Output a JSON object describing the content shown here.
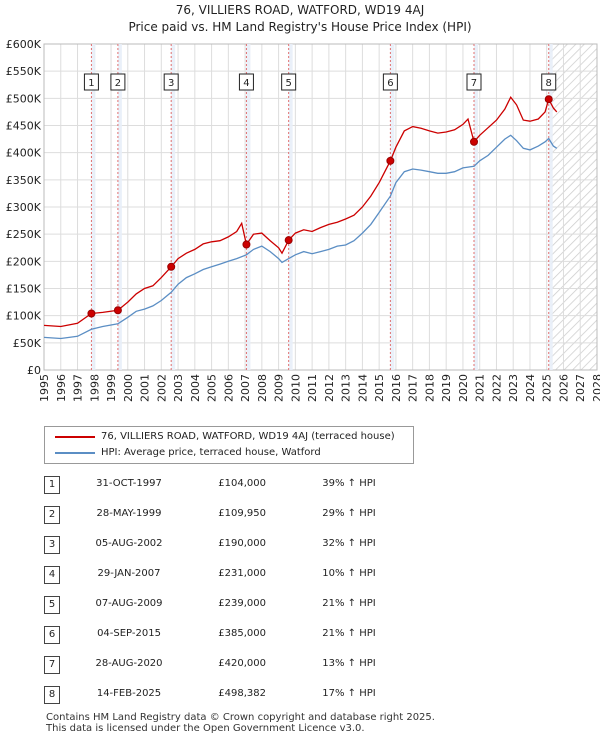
{
  "chart_data": {
    "type": "line",
    "title": "76, VILLIERS ROAD, WATFORD, WD19 4AJ",
    "subtitle": "Price paid vs. HM Land Registry's House Price Index (HPI)",
    "xlim": [
      1995,
      2028
    ],
    "ylim": [
      0,
      600000
    ],
    "x_ticks": [
      "1995",
      "1996",
      "1997",
      "1998",
      "1999",
      "2000",
      "2001",
      "2002",
      "2003",
      "2004",
      "2005",
      "2006",
      "2007",
      "2008",
      "2009",
      "2010",
      "2011",
      "2012",
      "2013",
      "2014",
      "2015",
      "2016",
      "2017",
      "2018",
      "2019",
      "2020",
      "2021",
      "2022",
      "2023",
      "2024",
      "2025",
      "2026",
      "2027",
      "2028"
    ],
    "y_ticks": [
      {
        "value": 0,
        "label": "£0"
      },
      {
        "value": 50000,
        "label": "£50K"
      },
      {
        "value": 100000,
        "label": "£100K"
      },
      {
        "value": 150000,
        "label": "£150K"
      },
      {
        "value": 200000,
        "label": "£200K"
      },
      {
        "value": 250000,
        "label": "£250K"
      },
      {
        "value": 300000,
        "label": "£300K"
      },
      {
        "value": 350000,
        "label": "£350K"
      },
      {
        "value": 400000,
        "label": "£400K"
      },
      {
        "value": 450000,
        "label": "£450K"
      },
      {
        "value": 500000,
        "label": "£500K"
      },
      {
        "value": 550000,
        "label": "£550K"
      },
      {
        "value": 600000,
        "label": "£600K"
      }
    ],
    "grid": true,
    "forecast_start": 2025.25,
    "series": [
      {
        "name": "76, VILLIERS ROAD, WATFORD, WD19 4AJ (terraced house)",
        "color": "#cc0000",
        "points": [
          [
            1995.0,
            82000
          ],
          [
            1996.0,
            80000
          ],
          [
            1997.0,
            86000
          ],
          [
            1997.83,
            104000
          ],
          [
            1998.5,
            106000
          ],
          [
            1999.41,
            109950
          ],
          [
            2000.0,
            125000
          ],
          [
            2000.5,
            140000
          ],
          [
            2001.0,
            150000
          ],
          [
            2001.5,
            155000
          ],
          [
            2002.0,
            170000
          ],
          [
            2002.59,
            190000
          ],
          [
            2003.0,
            205000
          ],
          [
            2003.5,
            215000
          ],
          [
            2004.0,
            222000
          ],
          [
            2004.5,
            232000
          ],
          [
            2005.0,
            236000
          ],
          [
            2005.5,
            238000
          ],
          [
            2006.0,
            245000
          ],
          [
            2006.5,
            255000
          ],
          [
            2006.8,
            270000
          ],
          [
            2007.08,
            231000
          ],
          [
            2007.5,
            250000
          ],
          [
            2008.0,
            252000
          ],
          [
            2008.5,
            238000
          ],
          [
            2009.0,
            225000
          ],
          [
            2009.2,
            215000
          ],
          [
            2009.6,
            239000
          ],
          [
            2010.0,
            252000
          ],
          [
            2010.5,
            258000
          ],
          [
            2011.0,
            255000
          ],
          [
            2011.5,
            262000
          ],
          [
            2012.0,
            268000
          ],
          [
            2012.5,
            272000
          ],
          [
            2013.0,
            278000
          ],
          [
            2013.5,
            285000
          ],
          [
            2014.0,
            300000
          ],
          [
            2014.5,
            320000
          ],
          [
            2015.0,
            345000
          ],
          [
            2015.67,
            385000
          ],
          [
            2016.0,
            410000
          ],
          [
            2016.5,
            440000
          ],
          [
            2017.0,
            448000
          ],
          [
            2017.5,
            445000
          ],
          [
            2018.0,
            440000
          ],
          [
            2018.5,
            436000
          ],
          [
            2019.0,
            438000
          ],
          [
            2019.5,
            442000
          ],
          [
            2020.0,
            452000
          ],
          [
            2020.3,
            462000
          ],
          [
            2020.66,
            420000
          ],
          [
            2021.0,
            432000
          ],
          [
            2021.5,
            446000
          ],
          [
            2022.0,
            460000
          ],
          [
            2022.5,
            480000
          ],
          [
            2022.85,
            502000
          ],
          [
            2023.2,
            488000
          ],
          [
            2023.6,
            460000
          ],
          [
            2024.0,
            458000
          ],
          [
            2024.5,
            462000
          ],
          [
            2024.9,
            475000
          ],
          [
            2025.12,
            498382
          ],
          [
            2025.4,
            482000
          ],
          [
            2025.6,
            475000
          ]
        ]
      },
      {
        "name": "HPI: Average price, terraced house, Watford",
        "color": "#5b8ec4",
        "points": [
          [
            1995.0,
            60000
          ],
          [
            1996.0,
            58000
          ],
          [
            1997.0,
            62000
          ],
          [
            1997.83,
            75000
          ],
          [
            1998.5,
            80000
          ],
          [
            1999.41,
            85000
          ],
          [
            2000.0,
            97000
          ],
          [
            2000.5,
            108000
          ],
          [
            2001.0,
            112000
          ],
          [
            2001.5,
            118000
          ],
          [
            2002.0,
            128000
          ],
          [
            2002.59,
            143000
          ],
          [
            2003.0,
            158000
          ],
          [
            2003.5,
            170000
          ],
          [
            2004.0,
            177000
          ],
          [
            2004.5,
            185000
          ],
          [
            2005.0,
            190000
          ],
          [
            2005.5,
            195000
          ],
          [
            2006.0,
            200000
          ],
          [
            2006.5,
            205000
          ],
          [
            2007.08,
            212000
          ],
          [
            2007.5,
            222000
          ],
          [
            2008.0,
            228000
          ],
          [
            2008.5,
            218000
          ],
          [
            2009.0,
            205000
          ],
          [
            2009.2,
            198000
          ],
          [
            2009.6,
            205000
          ],
          [
            2010.0,
            212000
          ],
          [
            2010.5,
            218000
          ],
          [
            2011.0,
            214000
          ],
          [
            2011.5,
            218000
          ],
          [
            2012.0,
            222000
          ],
          [
            2012.5,
            228000
          ],
          [
            2013.0,
            230000
          ],
          [
            2013.5,
            238000
          ],
          [
            2014.0,
            252000
          ],
          [
            2014.5,
            268000
          ],
          [
            2015.0,
            290000
          ],
          [
            2015.67,
            320000
          ],
          [
            2016.0,
            345000
          ],
          [
            2016.5,
            365000
          ],
          [
            2017.0,
            370000
          ],
          [
            2017.5,
            368000
          ],
          [
            2018.0,
            365000
          ],
          [
            2018.5,
            362000
          ],
          [
            2019.0,
            362000
          ],
          [
            2019.5,
            365000
          ],
          [
            2020.0,
            372000
          ],
          [
            2020.66,
            375000
          ],
          [
            2021.0,
            385000
          ],
          [
            2021.5,
            395000
          ],
          [
            2022.0,
            410000
          ],
          [
            2022.5,
            425000
          ],
          [
            2022.85,
            432000
          ],
          [
            2023.2,
            422000
          ],
          [
            2023.6,
            408000
          ],
          [
            2024.0,
            405000
          ],
          [
            2024.5,
            412000
          ],
          [
            2024.9,
            420000
          ],
          [
            2025.12,
            426000
          ],
          [
            2025.4,
            412000
          ],
          [
            2025.6,
            408000
          ]
        ]
      }
    ],
    "sales": [
      {
        "num": "1",
        "x": 1997.83,
        "price": 104000,
        "date": "31-OCT-1997",
        "price_label": "£104,000",
        "hpi": "39% ↑ HPI"
      },
      {
        "num": "2",
        "x": 1999.41,
        "price": 109950,
        "date": "28-MAY-1999",
        "price_label": "£109,950",
        "hpi": "29% ↑ HPI"
      },
      {
        "num": "3",
        "x": 2002.59,
        "price": 190000,
        "date": "05-AUG-2002",
        "price_label": "£190,000",
        "hpi": "32% ↑ HPI"
      },
      {
        "num": "4",
        "x": 2007.08,
        "price": 231000,
        "date": "29-JAN-2007",
        "price_label": "£231,000",
        "hpi": "10% ↑ HPI"
      },
      {
        "num": "5",
        "x": 2009.6,
        "price": 239000,
        "date": "07-AUG-2009",
        "price_label": "£239,000",
        "hpi": "21% ↑ HPI"
      },
      {
        "num": "6",
        "x": 2015.67,
        "price": 385000,
        "date": "04-SEP-2015",
        "price_label": "£385,000",
        "hpi": "21% ↑ HPI"
      },
      {
        "num": "7",
        "x": 2020.66,
        "price": 420000,
        "date": "28-AUG-2020",
        "price_label": "£420,000",
        "hpi": "13% ↑ HPI"
      },
      {
        "num": "8",
        "x": 2025.12,
        "price": 498382,
        "date": "14-FEB-2025",
        "price_label": "£498,382",
        "hpi": "17% ↑ HPI"
      }
    ]
  },
  "legend": {
    "property": "76, VILLIERS ROAD, WATFORD, WD19 4AJ (terraced house)",
    "hpi": "HPI: Average price, terraced house, Watford"
  },
  "colors": {
    "property": "#cc0000",
    "hpi": "#5b8ec4",
    "grid": "#dddddd",
    "shade": "#e8eef8"
  },
  "footer": {
    "line1": "Contains HM Land Registry data © Crown copyright and database right 2025.",
    "line2": "This data is licensed under the Open Government Licence v3.0."
  }
}
